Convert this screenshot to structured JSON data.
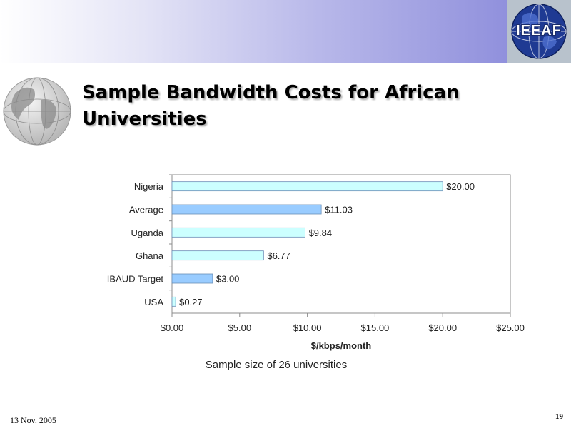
{
  "header": {
    "logo_text": "IEEAF",
    "accent_color": "#8a8ad9"
  },
  "slide": {
    "title": "Sample Bandwidth Costs for African Universities",
    "footer_date": "13 Nov. 2005",
    "page_number": "19"
  },
  "chart_data": {
    "type": "bar",
    "orientation": "horizontal",
    "categories": [
      "Nigeria",
      "Average",
      "Uganda",
      "Ghana",
      "IBAUD Target",
      "USA"
    ],
    "values": [
      20.0,
      11.03,
      9.84,
      6.77,
      3.0,
      0.27
    ],
    "value_labels": [
      "$20.00",
      "$11.03",
      "$9.84",
      "$6.77",
      "$3.00",
      "$0.27"
    ],
    "bar_colors": [
      "#ccffff",
      "#99ccff",
      "#ccffff",
      "#ccffff",
      "#99ccff",
      "#ccffff"
    ],
    "xlabel": "$/kbps/month",
    "xlim": [
      0,
      25
    ],
    "x_ticks": [
      0,
      5,
      10,
      15,
      20,
      25
    ],
    "x_tick_labels": [
      "$0.00",
      "$5.00",
      "$10.00",
      "$15.00",
      "$20.00",
      "$25.00"
    ],
    "grid": false,
    "legend": "none",
    "annotation": "Sample size of 26 universities"
  }
}
